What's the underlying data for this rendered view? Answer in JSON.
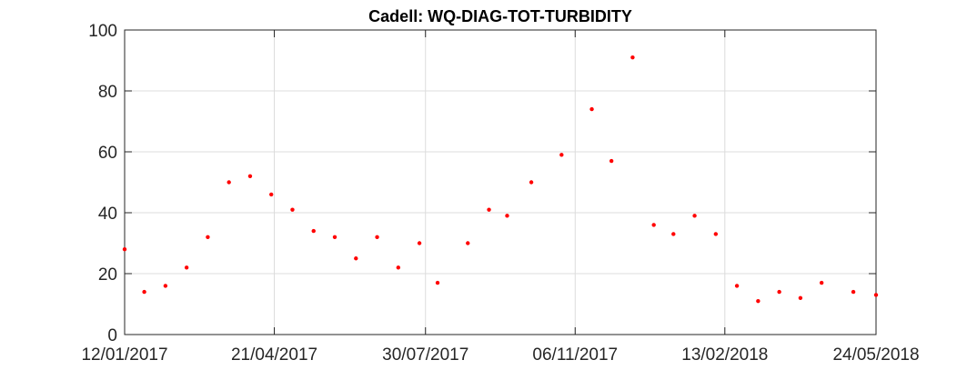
{
  "chart_data": {
    "type": "scatter",
    "title": "Cadell: WQ-DIAG-TOT-TURBIDITY",
    "xlabel": "",
    "ylabel": "",
    "ylim": [
      0,
      100
    ],
    "xlim": [
      "2017-01-12",
      "2018-05-24"
    ],
    "y_ticks": [
      0,
      20,
      40,
      60,
      80,
      100
    ],
    "x_ticks": [
      {
        "date": "2017-01-12",
        "label": "12/01/2017"
      },
      {
        "date": "2017-04-21",
        "label": "21/04/2017"
      },
      {
        "date": "2017-07-30",
        "label": "30/07/2017"
      },
      {
        "date": "2017-11-06",
        "label": "06/11/2017"
      },
      {
        "date": "2018-02-13",
        "label": "13/02/2018"
      },
      {
        "date": "2018-05-24",
        "label": "24/05/2018"
      }
    ],
    "grid": true,
    "marker_color": "#ff0000",
    "points": [
      {
        "x": "2017-01-12",
        "y": 28
      },
      {
        "x": "2017-01-25",
        "y": 14
      },
      {
        "x": "2017-02-08",
        "y": 16
      },
      {
        "x": "2017-02-22",
        "y": 22
      },
      {
        "x": "2017-03-08",
        "y": 32
      },
      {
        "x": "2017-03-22",
        "y": 50
      },
      {
        "x": "2017-04-05",
        "y": 52
      },
      {
        "x": "2017-04-19",
        "y": 46
      },
      {
        "x": "2017-05-03",
        "y": 41
      },
      {
        "x": "2017-05-17",
        "y": 34
      },
      {
        "x": "2017-05-31",
        "y": 32
      },
      {
        "x": "2017-06-14",
        "y": 25
      },
      {
        "x": "2017-06-28",
        "y": 32
      },
      {
        "x": "2017-07-12",
        "y": 22
      },
      {
        "x": "2017-07-26",
        "y": 30
      },
      {
        "x": "2017-08-07",
        "y": 17
      },
      {
        "x": "2017-08-27",
        "y": 30
      },
      {
        "x": "2017-09-10",
        "y": 41
      },
      {
        "x": "2017-09-22",
        "y": 39
      },
      {
        "x": "2017-10-08",
        "y": 50
      },
      {
        "x": "2017-10-28",
        "y": 59
      },
      {
        "x": "2017-11-17",
        "y": 74
      },
      {
        "x": "2017-11-30",
        "y": 57
      },
      {
        "x": "2017-12-14",
        "y": 91
      },
      {
        "x": "2017-12-28",
        "y": 36
      },
      {
        "x": "2018-01-10",
        "y": 33
      },
      {
        "x": "2018-01-24",
        "y": 39
      },
      {
        "x": "2018-02-07",
        "y": 33
      },
      {
        "x": "2018-02-21",
        "y": 16
      },
      {
        "x": "2018-03-07",
        "y": 11
      },
      {
        "x": "2018-03-21",
        "y": 14
      },
      {
        "x": "2018-04-04",
        "y": 12
      },
      {
        "x": "2018-04-18",
        "y": 17
      },
      {
        "x": "2018-05-09",
        "y": 14
      },
      {
        "x": "2018-05-24",
        "y": 13
      }
    ]
  }
}
